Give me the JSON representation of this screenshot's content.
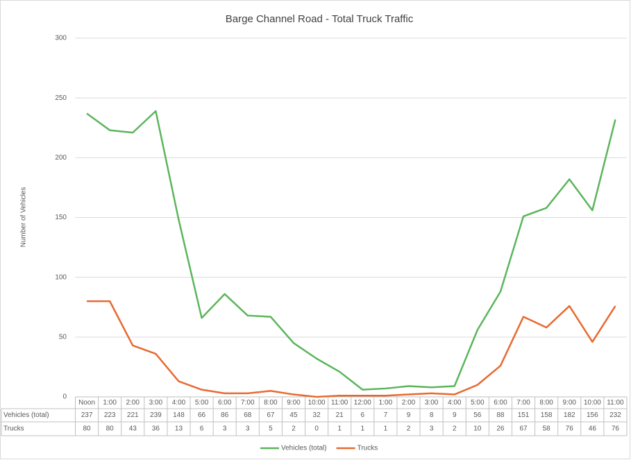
{
  "chart_data": {
    "type": "line",
    "title": "Barge Channel Road - Total Truck Traffic",
    "y_label": "Number of Vehicles",
    "categories": [
      "Noon",
      "1:00",
      "2:00",
      "3:00",
      "4:00",
      "5:00",
      "6:00",
      "7:00",
      "8:00",
      "9:00",
      "10:00",
      "11:00",
      "12:00",
      "1:00",
      "2:00",
      "3:00",
      "4:00",
      "5:00",
      "6:00",
      "7:00",
      "8:00",
      "9:00",
      "10:00",
      "11:00"
    ],
    "series": [
      {
        "name": "Vehicles (total)",
        "color": "#5bb55b",
        "values": [
          237,
          223,
          221,
          239,
          148,
          66,
          86,
          68,
          67,
          45,
          32,
          21,
          6,
          7,
          9,
          8,
          9,
          56,
          88,
          151,
          158,
          182,
          156,
          232
        ]
      },
      {
        "name": "Trucks",
        "color": "#e8692f",
        "values": [
          80,
          80,
          43,
          36,
          13,
          6,
          3,
          3,
          5,
          2,
          0,
          1,
          1,
          1,
          2,
          3,
          2,
          10,
          26,
          67,
          58,
          76,
          46,
          76
        ]
      }
    ],
    "ylim": [
      0,
      300
    ],
    "yticks": [
      0,
      50,
      100,
      150,
      200,
      250,
      300
    ],
    "grid": true,
    "data_table": true,
    "legend": "bottom"
  }
}
